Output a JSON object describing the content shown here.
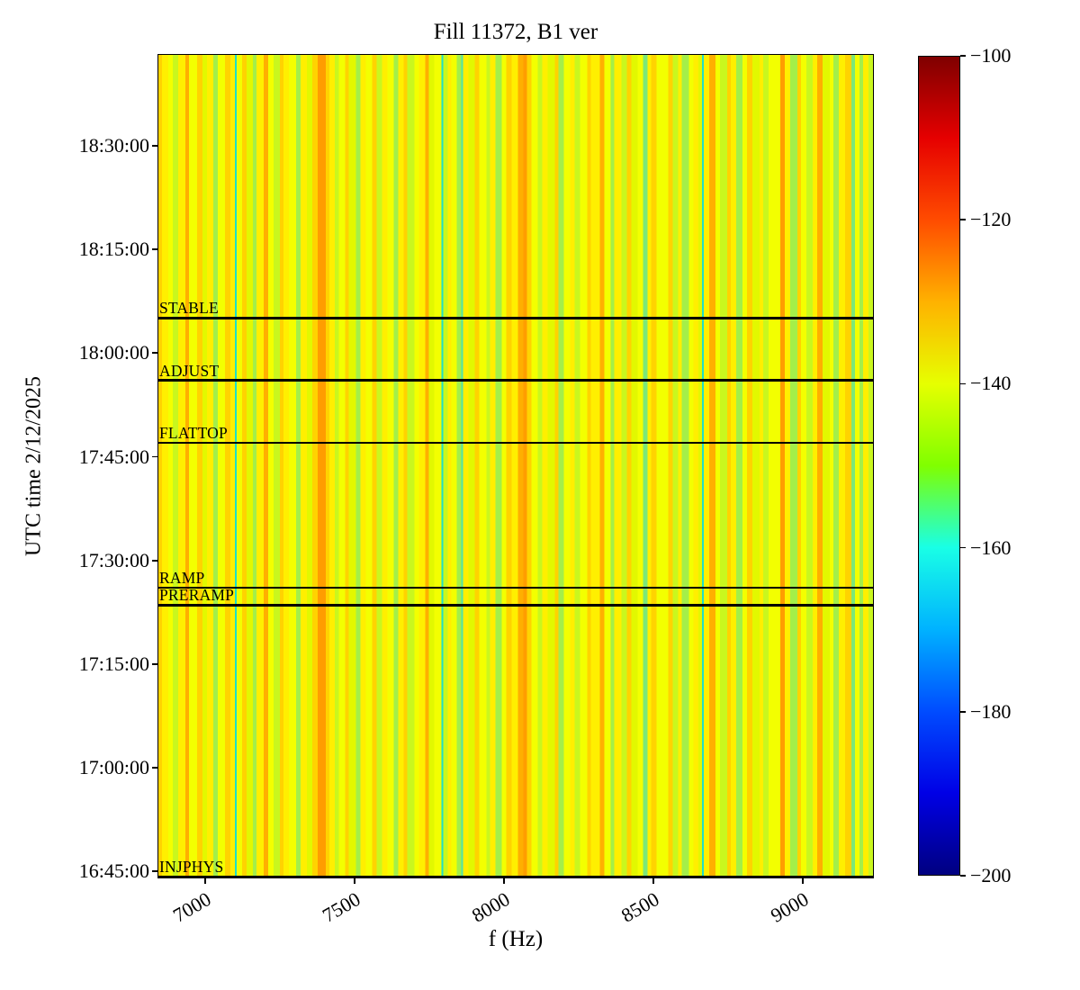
{
  "chart_data": {
    "type": "heatmap",
    "subtype": "spectrogram",
    "title": "Fill 11372, B1 ver",
    "xlabel": "f (Hz)",
    "ylabel": "UTC time 2/12/2025",
    "x_ticks": [
      7000,
      7500,
      8000,
      8500,
      9000
    ],
    "x_range_hz": [
      6840,
      9238
    ],
    "y_ticks": [
      "18:30:00",
      "18:15:00",
      "18:00:00",
      "17:45:00",
      "17:30:00",
      "17:15:00",
      "17:00:00",
      "16:45:00"
    ],
    "y_range_utc": [
      "16:44:00",
      "18:43:16"
    ],
    "grid": false,
    "colorbar": {
      "colormap": "jet",
      "min": -200,
      "max": -100,
      "ticks": [
        -100,
        -120,
        -140,
        -160,
        -180,
        -200
      ],
      "position": "right"
    },
    "annotations": [
      {
        "label": "STABLE",
        "utc": "18:05:00"
      },
      {
        "label": "ADJUST",
        "utc": "17:56:00"
      },
      {
        "label": "FLATTOP",
        "utc": "17:47:00"
      },
      {
        "label": "RAMP",
        "utc": "17:26:00"
      },
      {
        "label": "PRERAMP",
        "utc": "17:23:30"
      },
      {
        "label": "INJPHYS",
        "utc": "16:44:00"
      }
    ],
    "annotation_line_color": "#000000",
    "value_note": "power spectral density, dB scale; plot body is vertical constant-in-time stripes mostly in the -130 to -160 dB range",
    "palette": [
      "#ffaf00",
      "#ffd300",
      "#ffef00",
      "#f3ff00",
      "#e2f800",
      "#c9f71e",
      "#a4ef49",
      "#7ce878",
      "#4fe3a8",
      "#1edfc8",
      "#ff9d00"
    ],
    "stripes": [
      [
        4,
        1
      ],
      [
        7,
        2
      ],
      [
        5,
        3
      ],
      [
        6,
        5
      ],
      [
        8,
        2
      ],
      [
        4,
        0
      ],
      [
        9,
        3
      ],
      [
        6,
        1
      ],
      [
        5,
        4
      ],
      [
        7,
        2
      ],
      [
        5,
        6
      ],
      [
        8,
        3
      ],
      [
        6,
        1
      ],
      [
        5,
        2
      ],
      [
        2,
        9
      ],
      [
        6,
        3
      ],
      [
        5,
        1
      ],
      [
        7,
        4
      ],
      [
        4,
        6
      ],
      [
        8,
        2
      ],
      [
        5,
        0
      ],
      [
        6,
        3
      ],
      [
        7,
        5
      ],
      [
        4,
        1
      ],
      [
        6,
        2
      ],
      [
        8,
        3
      ],
      [
        5,
        6
      ],
      [
        7,
        2
      ],
      [
        6,
        4
      ],
      [
        6,
        1
      ],
      [
        9,
        10
      ],
      [
        4,
        1
      ],
      [
        6,
        2
      ],
      [
        5,
        5
      ],
      [
        7,
        3
      ],
      [
        4,
        1
      ],
      [
        8,
        4
      ],
      [
        5,
        6
      ],
      [
        6,
        2
      ],
      [
        7,
        3
      ],
      [
        5,
        1
      ],
      [
        6,
        5
      ],
      [
        6,
        2
      ],
      [
        7,
        3
      ],
      [
        5,
        6
      ],
      [
        6,
        2
      ],
      [
        4,
        1
      ],
      [
        8,
        5
      ],
      [
        5,
        3
      ],
      [
        7,
        2
      ],
      [
        4,
        0
      ],
      [
        6,
        4
      ],
      [
        8,
        3
      ],
      [
        2,
        9
      ],
      [
        5,
        5
      ],
      [
        4,
        2
      ],
      [
        6,
        3
      ],
      [
        5,
        6
      ],
      [
        2,
        8
      ],
      [
        6,
        2
      ],
      [
        7,
        4
      ],
      [
        5,
        1
      ],
      [
        8,
        3
      ],
      [
        4,
        5
      ],
      [
        6,
        2
      ],
      [
        7,
        6
      ],
      [
        5,
        3
      ],
      [
        6,
        1
      ],
      [
        7,
        2
      ],
      [
        6,
        0
      ],
      [
        4,
        10
      ],
      [
        5,
        1
      ],
      [
        7,
        3
      ],
      [
        5,
        5
      ],
      [
        6,
        2
      ],
      [
        8,
        4
      ],
      [
        4,
        1
      ],
      [
        6,
        6
      ],
      [
        7,
        3
      ],
      [
        5,
        2
      ],
      [
        6,
        5
      ],
      [
        8,
        3
      ],
      [
        4,
        1
      ],
      [
        4,
        2
      ],
      [
        6,
        2
      ],
      [
        5,
        0
      ],
      [
        7,
        3
      ],
      [
        4,
        6
      ],
      [
        8,
        2
      ],
      [
        6,
        5
      ],
      [
        5,
        1
      ],
      [
        7,
        4
      ],
      [
        6,
        3
      ],
      [
        5,
        7
      ],
      [
        4,
        2
      ],
      [
        6,
        1
      ],
      [
        6,
        3
      ],
      [
        7,
        3
      ],
      [
        5,
        1
      ],
      [
        6,
        5
      ],
      [
        4,
        2
      ],
      [
        8,
        6
      ],
      [
        5,
        3
      ],
      [
        6,
        2
      ],
      [
        4,
        4
      ],
      [
        2,
        9
      ],
      [
        6,
        2
      ],
      [
        7,
        0
      ],
      [
        5,
        3
      ],
      [
        8,
        5
      ],
      [
        4,
        1
      ],
      [
        6,
        2
      ],
      [
        7,
        6
      ],
      [
        5,
        3
      ],
      [
        6,
        1
      ],
      [
        8,
        4
      ],
      [
        4,
        2
      ],
      [
        6,
        5
      ],
      [
        6,
        3
      ],
      [
        7,
        3
      ],
      [
        5,
        10
      ],
      [
        6,
        2
      ],
      [
        8,
        6
      ],
      [
        4,
        1
      ],
      [
        6,
        3
      ],
      [
        7,
        5
      ],
      [
        5,
        2
      ],
      [
        6,
        0
      ],
      [
        8,
        4
      ],
      [
        4,
        3
      ],
      [
        6,
        6
      ],
      [
        7,
        2
      ],
      [
        7,
        1
      ],
      [
        4,
        7
      ],
      [
        5,
        3
      ],
      [
        4,
        6
      ],
      [
        6,
        2
      ],
      [
        5,
        5
      ]
    ]
  },
  "colors": {
    "background": "#ffffff",
    "axis": "#000000",
    "text": "#000000"
  }
}
